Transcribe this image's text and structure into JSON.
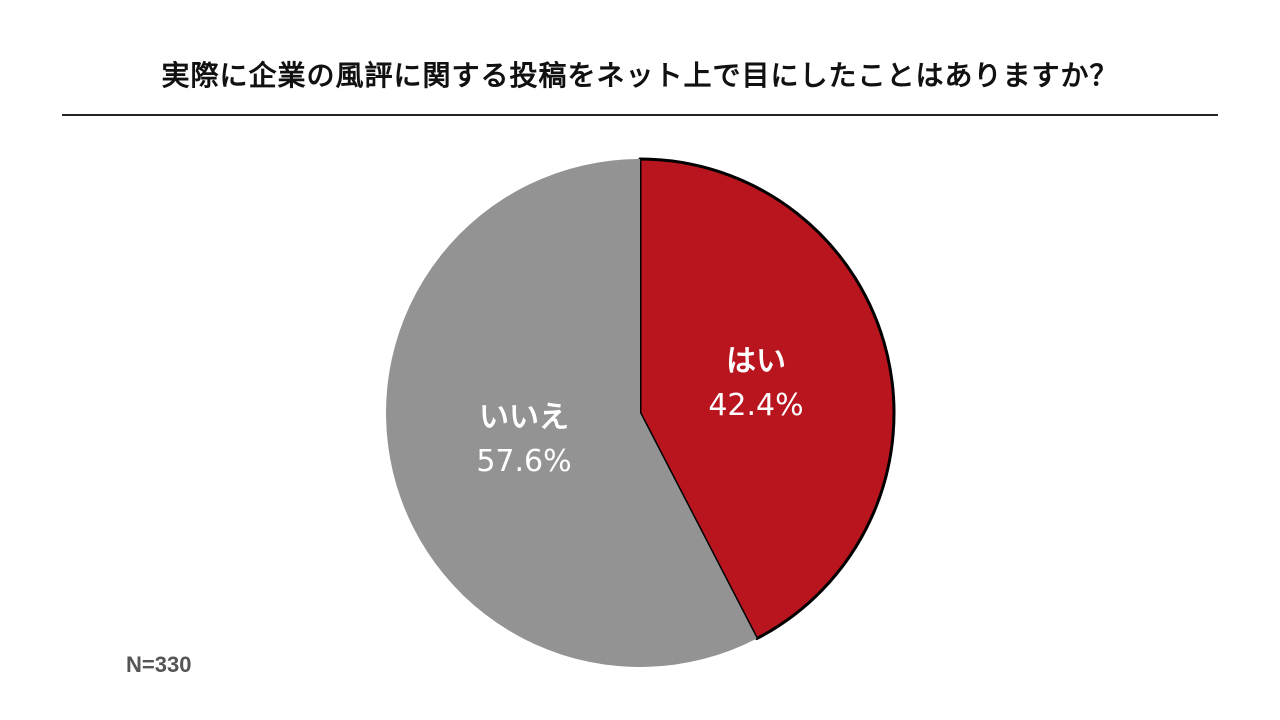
{
  "chart_data": {
    "type": "pie",
    "title": "実際に企業の風評に関する投稿をネット上で目にしたことはありますか？",
    "slices": [
      {
        "label": "はい",
        "value": 42.4,
        "value_text": "42.4%",
        "color": "#b8151f"
      },
      {
        "label": "いいえ",
        "value": 57.6,
        "value_text": "57.6%",
        "color": "#939393"
      }
    ],
    "start": "12 o'clock",
    "direction": "clockwise",
    "note": "N=330"
  }
}
